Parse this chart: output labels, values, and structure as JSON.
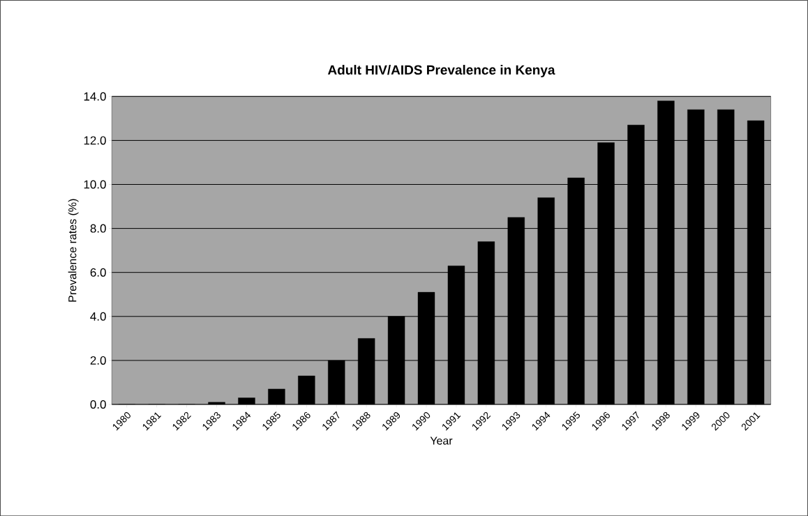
{
  "chart_data": {
    "type": "bar",
    "title": "Adult HIV/AIDS Prevalence in Kenya",
    "xlabel": "Year",
    "ylabel": "Prevalence rates (%)",
    "categories": [
      "1980",
      "1981",
      "1982",
      "1983",
      "1984",
      "1985",
      "1986",
      "1987",
      "1988",
      "1989",
      "1990",
      "1991",
      "1992",
      "1993",
      "1994",
      "1995",
      "1996",
      "1997",
      "1998",
      "1999",
      "2000",
      "2001"
    ],
    "values": [
      0,
      0,
      0,
      0.1,
      0.3,
      0.7,
      1.3,
      2.0,
      3.0,
      4.0,
      5.1,
      6.3,
      7.4,
      8.5,
      9.4,
      10.3,
      11.9,
      12.7,
      13.8,
      13.4,
      13.4,
      12.9
    ],
    "color": "#000000",
    "ylim": [
      0,
      14
    ],
    "yticks": [
      {
        "value": 0,
        "label": "0.0"
      },
      {
        "value": 2,
        "label": "2.0"
      },
      {
        "value": 4,
        "label": "4.0"
      },
      {
        "value": 6,
        "label": "6.0"
      },
      {
        "value": 8,
        "label": "8.0"
      },
      {
        "value": 10,
        "label": "10.0"
      },
      {
        "value": 12,
        "label": "12.0"
      },
      {
        "value": 14,
        "label": "14.0"
      }
    ],
    "grid": "y"
  }
}
